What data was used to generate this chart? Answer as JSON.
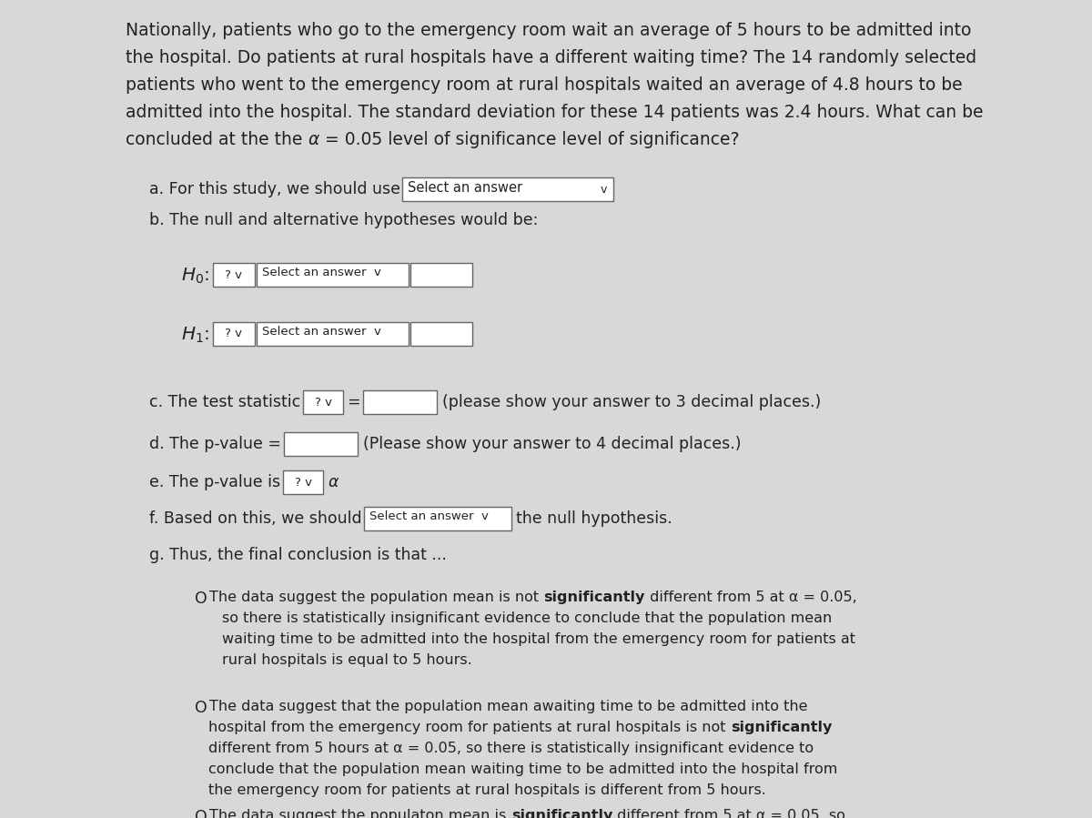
{
  "bg_color": "#d8d8d8",
  "content_bg": "#f5f5f5",
  "text_color": "#222222",
  "box_border": "#888888",
  "box_fill": "#ffffff",
  "intro_lines": [
    "Nationally, patients who go to the emergency room wait an average of 5 hours to be admitted into",
    "the hospital. Do patients at rural hospitals have a different waiting time? The 14 randomly selected",
    "patients who went to the emergency room at rural hospitals waited an average of 4.8 hours to be",
    "admitted into the hospital. The standard deviation for these 14 patients was 2.4 hours. What can be",
    [
      "concluded at the the ",
      "α",
      " = 0.05 level of significance level of significance?"
    ]
  ],
  "font_family": "DejaVu Sans",
  "intro_fs": 13.5,
  "body_fs": 12.5,
  "option_fs": 11.5
}
